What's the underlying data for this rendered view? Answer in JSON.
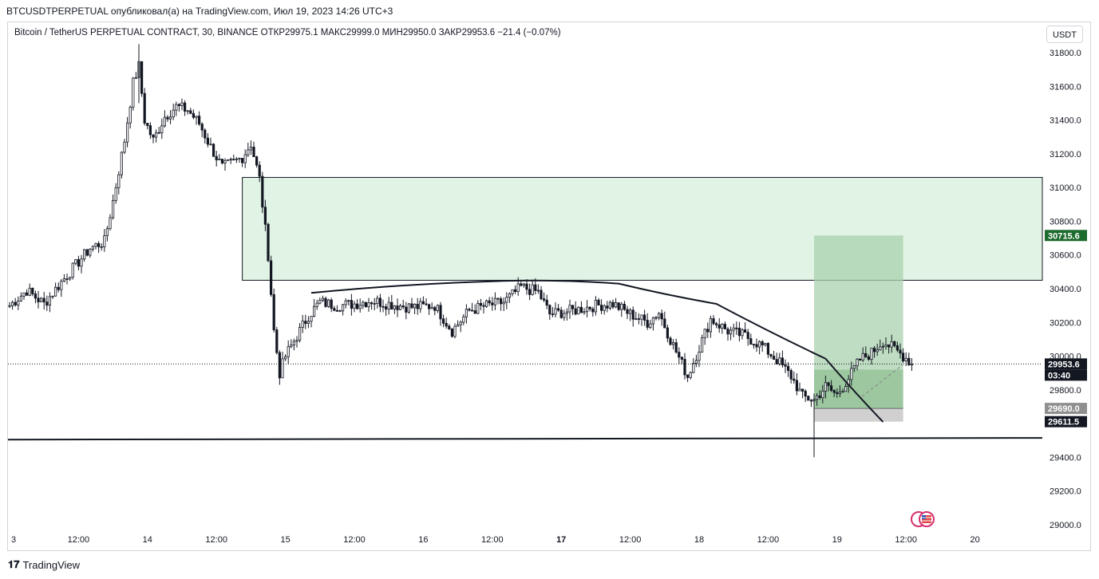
{
  "header": {
    "publish_line": "BTCUSDTPERPETUAL опубликовал(а) на TradingView.com, Июл 19, 2023 14:26 UTC+3"
  },
  "legend": {
    "text": "Bitcoin / TetherUS PERPETUAL CONTRACT, 30, BINANCE  ОТКР29975.1  МАКС29999.0  МИН29950.0  ЗАКР29953.6  −21.4 (−0.07%)"
  },
  "currency_button": "USDT",
  "brand": {
    "name": "TradingView"
  },
  "colors": {
    "up": "#131722",
    "down": "#131722",
    "zone_fill": "#cdebd3",
    "zone_border": "#131722",
    "target_fill": "#a9d1ad",
    "stop_fill": "#c8c8c8",
    "price_label": "#131722",
    "target_label": "#1e6b2e"
  },
  "chart_data": {
    "type": "candlestick",
    "y_axis": {
      "ylim": [
        28990,
        31850
      ],
      "ticks": [
        "31800.0",
        "31600.0",
        "31400.0",
        "31200.0",
        "31000.0",
        "30800.0",
        "30600.0",
        "30400.0",
        "30200.0",
        "30000.0",
        "29800.0",
        "29600.0",
        "29400.0",
        "29200.0",
        "29000.0"
      ],
      "tick_values": [
        31800,
        31600,
        31400,
        31200,
        31000,
        30800,
        30600,
        30400,
        30200,
        30000,
        29800,
        29600,
        29400,
        29200,
        29000
      ]
    },
    "x_axis": {
      "labels": [
        "3",
        "12:00",
        "14",
        "12:00",
        "15",
        "12:00",
        "16",
        "12:00",
        "17",
        "12:00",
        "18",
        "12:00",
        "19",
        "12:00",
        "20"
      ],
      "bold": [
        false,
        false,
        false,
        false,
        false,
        false,
        false,
        false,
        true,
        false,
        false,
        false,
        false,
        false,
        false
      ],
      "positions_bars": [
        0,
        24,
        48,
        72,
        96,
        120,
        144,
        168,
        192,
        216,
        240,
        264,
        288,
        312,
        336
      ]
    },
    "price_labels": [
      {
        "text": "30715.6",
        "value": 30715.6,
        "kind": "target"
      },
      {
        "text": "29953.6",
        "value": 29953.6,
        "kind": "last"
      },
      {
        "text": "03:40",
        "kind": "countdown"
      },
      {
        "text": "29690.0",
        "value": 29690.0,
        "kind": "entry"
      },
      {
        "text": "29611.5",
        "value": 29611.5,
        "kind": "stop"
      }
    ],
    "zone": {
      "top": 31060,
      "bottom": 30450,
      "start_bar": 81
    },
    "support_line": {
      "value_left": 29505,
      "value_right": 29515
    },
    "curve": {
      "points": [
        [
          105,
          30375
        ],
        [
          170,
          30445
        ],
        [
          212,
          30430
        ],
        [
          246,
          30310
        ],
        [
          284,
          29985
        ],
        [
          304,
          29610
        ]
      ]
    },
    "position": {
      "start_bar": 280,
      "end_bar": 311,
      "entry": 29690.0,
      "target": 30715.6,
      "stop": 29611.5,
      "entry_zone_top": 29920
    },
    "candles_anchor": [
      [
        0,
        30300
      ],
      [
        6,
        30390
      ],
      [
        12,
        30310
      ],
      [
        18,
        30440
      ],
      [
        24,
        30560
      ],
      [
        28,
        30640
      ],
      [
        33,
        30680
      ],
      [
        36,
        30920
      ],
      [
        40,
        31280
      ],
      [
        43,
        31620
      ],
      [
        45,
        31720
      ],
      [
        47,
        31400
      ],
      [
        50,
        31280
      ],
      [
        54,
        31420
      ],
      [
        58,
        31480
      ],
      [
        62,
        31460
      ],
      [
        66,
        31380
      ],
      [
        70,
        31240
      ],
      [
        74,
        31120
      ],
      [
        78,
        31150
      ],
      [
        81,
        31180
      ],
      [
        84,
        31260
      ],
      [
        87,
        31050
      ],
      [
        90,
        30600
      ],
      [
        92,
        30150
      ],
      [
        94,
        29900
      ],
      [
        96,
        30000
      ],
      [
        100,
        30120
      ],
      [
        104,
        30240
      ],
      [
        108,
        30320
      ],
      [
        114,
        30300
      ],
      [
        120,
        30310
      ],
      [
        126,
        30330
      ],
      [
        132,
        30310
      ],
      [
        140,
        30290
      ],
      [
        148,
        30300
      ],
      [
        154,
        30150
      ],
      [
        160,
        30270
      ],
      [
        166,
        30300
      ],
      [
        172,
        30320
      ],
      [
        178,
        30410
      ],
      [
        184,
        30380
      ],
      [
        188,
        30250
      ],
      [
        196,
        30270
      ],
      [
        204,
        30300
      ],
      [
        210,
        30310
      ],
      [
        216,
        30250
      ],
      [
        222,
        30200
      ],
      [
        226,
        30260
      ],
      [
        230,
        30100
      ],
      [
        236,
        29880
      ],
      [
        240,
        30050
      ],
      [
        244,
        30220
      ],
      [
        250,
        30150
      ],
      [
        256,
        30120
      ],
      [
        262,
        30060
      ],
      [
        268,
        29960
      ],
      [
        272,
        29880
      ],
      [
        276,
        29760
      ],
      [
        280,
        29740
      ],
      [
        284,
        29820
      ],
      [
        288,
        29770
      ],
      [
        292,
        29870
      ],
      [
        296,
        29980
      ],
      [
        300,
        30020
      ],
      [
        304,
        30090
      ],
      [
        308,
        30040
      ],
      [
        312,
        29990
      ],
      [
        314,
        29953.6
      ]
    ]
  }
}
